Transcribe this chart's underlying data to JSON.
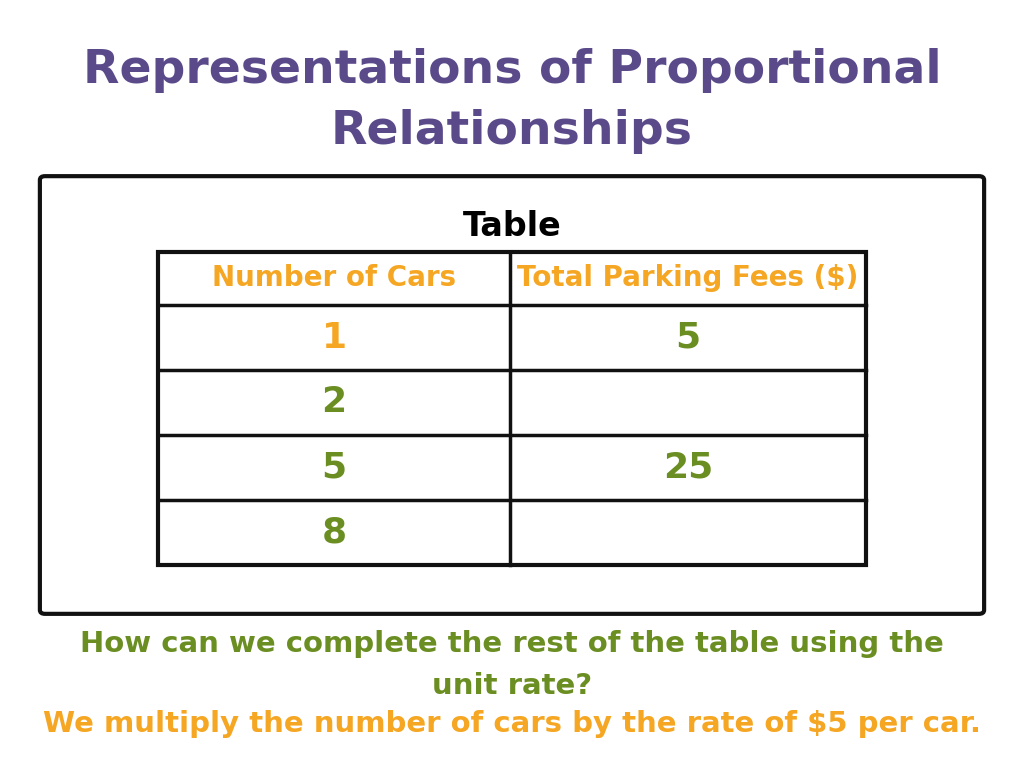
{
  "title_line1": "Representations of Proportional",
  "title_line2": "Relationships",
  "title_color": "#5b4a8a",
  "title_fontsize": 34,
  "table_label": "Table",
  "table_label_fontsize": 24,
  "col_headers": [
    "Number of Cars",
    "Total Parking Fees ($)"
  ],
  "col_header_color": "#f5a623",
  "col_header_fontsize": 20,
  "rows": [
    [
      "1",
      "5"
    ],
    [
      "2",
      ""
    ],
    [
      "5",
      "25"
    ],
    [
      "8",
      ""
    ]
  ],
  "row_colors_col0": [
    "#f5a623",
    "#6b8e23",
    "#6b8e23",
    "#6b8e23"
  ],
  "row_colors_col1": [
    "#6b8e23",
    "",
    "#6b8e23",
    ""
  ],
  "data_fontsize": 26,
  "question_line1": "How can we complete the rest of the table using the",
  "question_line2": "unit rate?",
  "question_color": "#6b8e23",
  "question_fontsize": 21,
  "answer_text": "We multiply the number of cars by the rate of $5 per car.",
  "answer_color": "#f5a623",
  "answer_fontsize": 21,
  "background_color": "#ffffff",
  "box_color": "#111111"
}
